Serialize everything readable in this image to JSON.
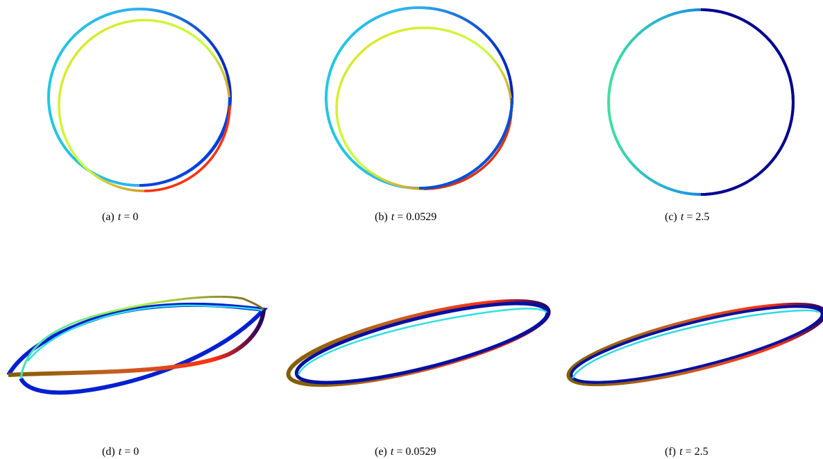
{
  "panels": [
    {
      "label": "(a)",
      "variable": "t",
      "equals": "=",
      "value": "0"
    },
    {
      "label": "(b)",
      "variable": "t",
      "equals": "=",
      "value": "0.0529"
    },
    {
      "label": "(c)",
      "variable": "t",
      "equals": "=",
      "value": "2.5"
    },
    {
      "label": "(d)",
      "variable": "t",
      "equals": "=",
      "value": "0"
    },
    {
      "label": "(e)",
      "variable": "t",
      "equals": "=",
      "value": "0.0529"
    },
    {
      "label": "(f)",
      "variable": "t",
      "equals": "=",
      "value": "2.5"
    }
  ],
  "colormap": [
    "#0000a0",
    "#0040ff",
    "#00c8ff",
    "#40ffc0",
    "#c8ff20",
    "#ffc000",
    "#ff4000",
    "#c00000"
  ]
}
